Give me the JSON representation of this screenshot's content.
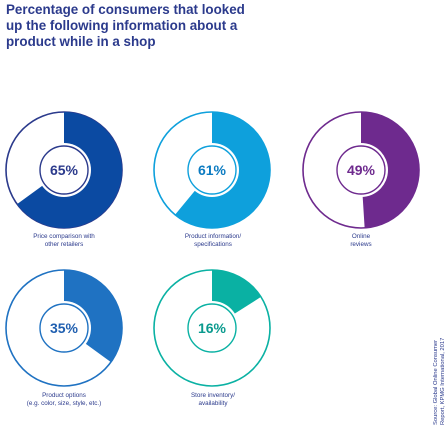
{
  "title_lines": [
    "Percentage of consumers that looked",
    "up the following information about a",
    "product while in a shop"
  ],
  "source_lines": [
    "Source: Global Online Consumer",
    "Report, KPMG International, 2017"
  ],
  "colors": {
    "text": "#2b3a8c",
    "ring_outline": "#2b3a8c",
    "empty_fill": "#ffffff"
  },
  "chart_data": {
    "type": "pie",
    "unit": "%",
    "items": [
      {
        "label_lines": [
          "Price comparison with",
          "other retailers"
        ],
        "value": 65,
        "value_label": "65%",
        "color": "#0b4aa2",
        "label_color": "#2b3a8c",
        "ring_color": "#2b3a8c"
      },
      {
        "label_lines": [
          "Product information/",
          "specifications"
        ],
        "value": 61,
        "value_label": "61%",
        "color": "#0ea0dc",
        "label_color": "#0b7bc1",
        "ring_color": "#0ea0dc"
      },
      {
        "label_lines": [
          "Online",
          "reviews"
        ],
        "value": 49,
        "value_label": "49%",
        "color": "#6e2a8e",
        "label_color": "#6e2a8e",
        "ring_color": "#6e2a8e"
      },
      {
        "label_lines": [
          "Product options",
          "(e.g. color, size, style, etc.)"
        ],
        "value": 35,
        "value_label": "35%",
        "color": "#1f72c2",
        "label_color": "#1f5fb0",
        "ring_color": "#1f72c2"
      },
      {
        "label_lines": [
          "Store inventory/",
          "availability"
        ],
        "value": 16,
        "value_label": "16%",
        "color": "#0ab1a3",
        "label_color": "#0a9a8e",
        "ring_color": "#0ab1a3"
      }
    ]
  }
}
